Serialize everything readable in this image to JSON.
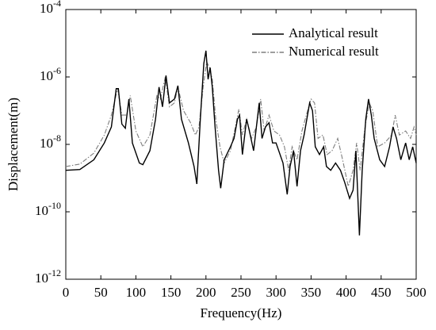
{
  "chart_data": {
    "type": "line",
    "x_label": "Frequency(Hz)",
    "y_label": "Displacement(m)",
    "log_y": true,
    "legend": "upper right",
    "xlim": [
      0,
      500
    ],
    "xticks": [
      0,
      50,
      100,
      150,
      200,
      250,
      300,
      350,
      400,
      450,
      500
    ],
    "ylim": [
      1e-12,
      0.0001
    ],
    "yticks": [
      {
        "value": 1e-12,
        "label": "10^-12"
      },
      {
        "value": 1e-10,
        "label": "10^-10"
      },
      {
        "value": 1e-08,
        "label": "10^-8"
      },
      {
        "value": 1e-06,
        "label": "10^-6"
      },
      {
        "value": 0.0001,
        "label": "10^-4"
      }
    ],
    "series": [
      {
        "name": "Analytical result",
        "color": "#000000",
        "dash": "solid",
        "x": [
          0,
          20,
          40,
          55,
          65,
          72,
          75,
          80,
          85,
          90,
          95,
          105,
          110,
          120,
          128,
          133,
          138,
          143,
          148,
          155,
          160,
          165,
          175,
          183,
          187,
          192,
          197,
          200,
          203,
          206,
          209,
          213,
          218,
          221,
          226,
          235,
          240,
          245,
          248,
          252,
          258,
          262,
          268,
          276,
          280,
          285,
          290,
          295,
          300,
          310,
          316,
          320,
          325,
          330,
          335,
          340,
          348,
          352,
          356,
          362,
          368,
          372,
          378,
          385,
          392,
          398,
          405,
          410,
          414,
          419,
          423,
          428,
          432,
          436,
          440,
          448,
          455,
          462,
          467,
          472,
          478,
          485,
          490,
          495,
          500
        ],
        "values": [
          1.7e-09,
          1.8e-09,
          3.5e-09,
          1.1e-08,
          3.3e-08,
          4.5e-07,
          4.5e-07,
          4e-08,
          3e-08,
          2.2e-07,
          1.1e-08,
          2.8e-09,
          2.5e-09,
          6.5e-09,
          5.6e-08,
          5e-07,
          1.3e-07,
          1.1e-06,
          1.7e-07,
          2.2e-07,
          5.5e-07,
          5.6e-08,
          1.1e-08,
          2.2e-09,
          6.7e-10,
          5.6e-08,
          2.5e-06,
          6e-06,
          8.5e-07,
          1.9e-06,
          5e-07,
          3.3e-08,
          1.7e-09,
          5e-10,
          3.5e-09,
          8.5e-09,
          1.5e-08,
          5.6e-08,
          7.4e-08,
          5e-09,
          5.6e-08,
          2.5e-08,
          6.5e-09,
          1.7e-07,
          1.5e-08,
          3.3e-08,
          4.4e-08,
          1.1e-08,
          1.1e-08,
          2.8e-09,
          3.3e-10,
          2.2e-09,
          6.5e-09,
          5.7e-10,
          6.5e-09,
          1.9e-08,
          1.7e-07,
          1e-07,
          8.5e-09,
          5e-09,
          8.5e-09,
          2.2e-09,
          1.7e-09,
          2.8e-09,
          1.7e-09,
          7.5e-10,
          2.5e-10,
          4.4e-10,
          6.5e-09,
          2e-11,
          1.7e-09,
          5.6e-08,
          2.2e-07,
          7.4e-08,
          1.5e-08,
          3.5e-09,
          2.2e-09,
          8.5e-09,
          3.3e-08,
          1.5e-08,
          3.5e-09,
          1.1e-08,
          3.5e-09,
          8.5e-09,
          2.8e-09
        ]
      },
      {
        "name": "Numerical result",
        "color": "#7f7f7f",
        "dash": "dashdot",
        "x": [
          0,
          20,
          40,
          55,
          65,
          74,
          80,
          87,
          92,
          100,
          110,
          120,
          130,
          135,
          142,
          148,
          155,
          160,
          168,
          178,
          185,
          190,
          196,
          201,
          205,
          209,
          214,
          220,
          226,
          235,
          242,
          247,
          252,
          258,
          265,
          272,
          278,
          283,
          290,
          297,
          305,
          312,
          318,
          323,
          330,
          337,
          345,
          350,
          355,
          360,
          367,
          373,
          380,
          388,
          395,
          403,
          410,
          415,
          420,
          427,
          433,
          438,
          445,
          455,
          465,
          470,
          476,
          485,
          492,
          497,
          500
        ],
        "values": [
          2.2e-09,
          2.6e-09,
          5.5e-09,
          1.9e-08,
          7.4e-08,
          4.5e-07,
          7.4e-08,
          7.4e-08,
          2.8e-07,
          2.5e-08,
          8.5e-09,
          1.9e-08,
          2.8e-07,
          2.2e-07,
          1e-06,
          1.3e-07,
          1.7e-07,
          5e-07,
          1e-07,
          4.4e-08,
          1.9e-08,
          3.3e-08,
          5e-07,
          2.8e-06,
          1.9e-06,
          8.5e-07,
          5.6e-08,
          8.5e-09,
          2.8e-09,
          6.5e-09,
          3.3e-08,
          1.1e-07,
          1.9e-08,
          5.6e-08,
          1.5e-08,
          3.3e-08,
          2.2e-07,
          2.5e-08,
          7.4e-08,
          2.5e-08,
          1.9e-08,
          8.5e-09,
          1.7e-09,
          8.5e-09,
          3.5e-09,
          2.5e-08,
          1e-07,
          2.2e-07,
          1.7e-07,
          1.5e-08,
          1.9e-08,
          5e-09,
          6.5e-09,
          1.5e-08,
          3.5e-09,
          5.7e-10,
          1.7e-09,
          1.1e-08,
          1.7e-09,
          3.3e-08,
          1.7e-07,
          1e-07,
          8.5e-09,
          1.1e-08,
          1.9e-08,
          7.4e-08,
          1.9e-08,
          2.5e-08,
          1.5e-08,
          3.3e-08,
          1.9e-08
        ]
      }
    ]
  }
}
